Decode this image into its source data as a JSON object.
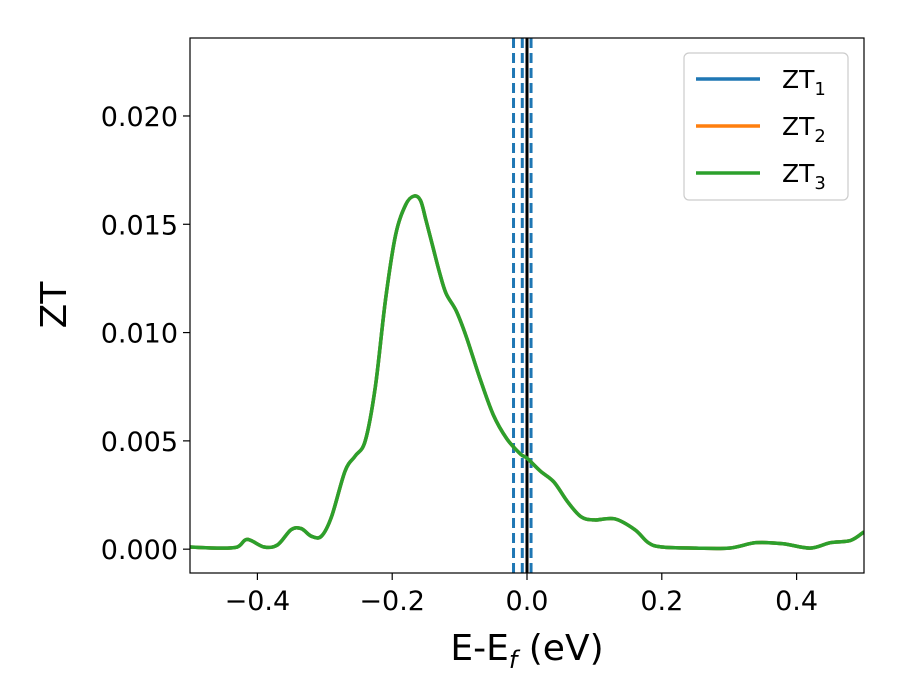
{
  "chart_data": {
    "type": "line",
    "xlabel_main": "E-E",
    "xlabel_sub": "f",
    "xlabel_unit": " (eV)",
    "ylabel": "ZT",
    "xlim": [
      -0.5,
      0.5
    ],
    "ylim": [
      -0.0011,
      0.0236
    ],
    "xticks": [
      -0.4,
      -0.2,
      0.0,
      0.2,
      0.4
    ],
    "xtick_labels": [
      "−0.4",
      "−0.2",
      "0.0",
      "0.2",
      "0.4"
    ],
    "yticks": [
      0.0,
      0.005,
      0.01,
      0.015,
      0.02
    ],
    "ytick_labels": [
      "0.000",
      "0.005",
      "0.010",
      "0.015",
      "0.020"
    ],
    "grid": false,
    "legend_position": "upper-right",
    "series": [
      {
        "name_main": "ZT",
        "name_sub": "1",
        "color": "#1f77b4"
      },
      {
        "name_main": "ZT",
        "name_sub": "2",
        "color": "#ff7f0e"
      },
      {
        "name_main": "ZT",
        "name_sub": "3",
        "color": "#2ca02c"
      }
    ],
    "x": [
      -0.5,
      -0.46,
      -0.43,
      -0.415,
      -0.39,
      -0.37,
      -0.35,
      -0.335,
      -0.32,
      -0.305,
      -0.29,
      -0.27,
      -0.255,
      -0.24,
      -0.225,
      -0.21,
      -0.195,
      -0.18,
      -0.168,
      -0.158,
      -0.15,
      -0.14,
      -0.13,
      -0.12,
      -0.105,
      -0.09,
      -0.07,
      -0.05,
      -0.03,
      -0.01,
      0.0,
      0.02,
      0.04,
      0.06,
      0.08,
      0.1,
      0.13,
      0.16,
      0.18,
      0.2,
      0.25,
      0.3,
      0.34,
      0.38,
      0.42,
      0.45,
      0.48,
      0.5
    ],
    "y": [
      0.0001,
      5e-05,
      0.0001,
      0.00045,
      0.0001,
      0.0002,
      0.0009,
      0.00095,
      0.0006,
      0.0006,
      0.0015,
      0.0036,
      0.0043,
      0.005,
      0.0075,
      0.0115,
      0.0145,
      0.0159,
      0.0163,
      0.0161,
      0.0152,
      0.014,
      0.0128,
      0.0118,
      0.011,
      0.0098,
      0.0079,
      0.0062,
      0.0051,
      0.0044,
      0.0042,
      0.0036,
      0.0031,
      0.0022,
      0.0015,
      0.00135,
      0.0014,
      0.0009,
      0.0003,
      0.0001,
      5e-05,
      5e-05,
      0.0003,
      0.00025,
      5e-05,
      0.0003,
      0.0004,
      0.0008
    ],
    "vlines": [
      {
        "x": -0.02,
        "style": "dashed",
        "color": "#1f77b4"
      },
      {
        "x": -0.007,
        "style": "dashed",
        "color": "#1f77b4"
      },
      {
        "x": 0.006,
        "style": "dashed",
        "color": "#1f77b4"
      },
      {
        "x": 0.0,
        "style": "solid",
        "color": "#000000"
      }
    ]
  }
}
